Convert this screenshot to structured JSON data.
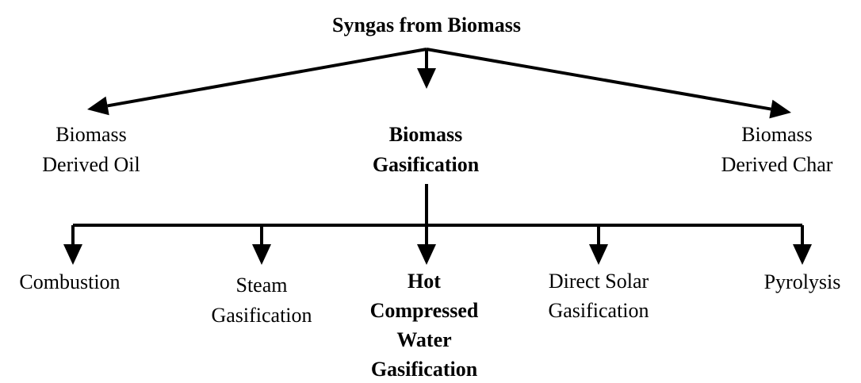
{
  "title": "Syngas from Biomass",
  "level1": [
    {
      "lines": [
        "Biomass",
        "Derived Oil"
      ]
    },
    {
      "lines": [
        "Biomass",
        "Gasification"
      ]
    },
    {
      "lines": [
        "Biomass",
        "Derived Char"
      ]
    }
  ],
  "level2": [
    {
      "lines": [
        "Combustion"
      ]
    },
    {
      "lines": [
        "Steam",
        "Gasification"
      ]
    },
    {
      "lines": [
        "Hot",
        "Compressed",
        "Water",
        "Gasification"
      ]
    },
    {
      "lines": [
        "Direct Solar",
        "Gasification"
      ]
    },
    {
      "lines": [
        "Pyrolysis"
      ]
    }
  ]
}
